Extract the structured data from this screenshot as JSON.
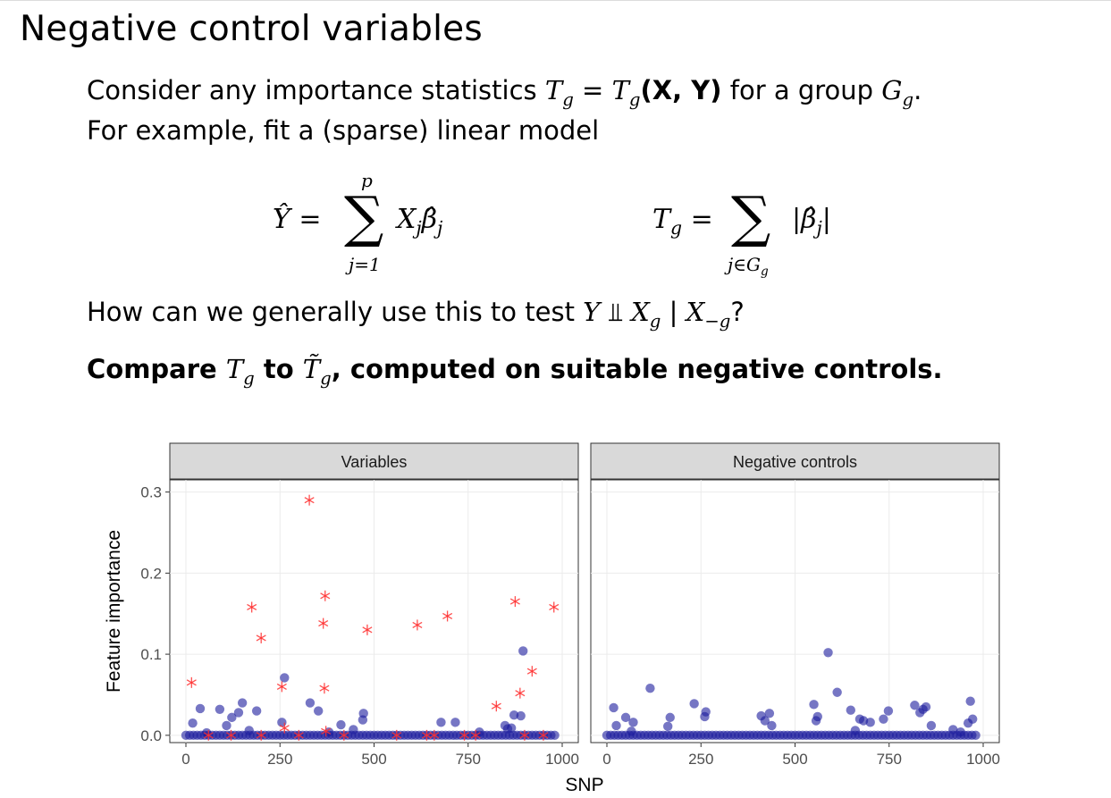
{
  "slide": {
    "title": "Negative control variables",
    "line1_a": "Consider any importance statistics ",
    "line1_stat": "T",
    "line1_stat_sub": "g",
    "line1_eq": " = ",
    "line1_cal": "T",
    "line1_cal_sub": "g",
    "line1_args": "(X, Y)",
    "line1_b": " for a group ",
    "line1_group": "G",
    "line1_group_sub": "g",
    "line1_end": ".",
    "line2": "For example, fit a (sparse) linear model",
    "eq1_lhs": "Ŷ = ",
    "eq1_sum_upper": "p",
    "eq1_sum_lower": "j=1",
    "eq1_term": "X",
    "eq1_term_sub": "j",
    "eq1_beta": "β̂",
    "eq1_beta_sub": "j",
    "eq2_lhs": "T",
    "eq2_lhs_sub": "g",
    "eq2_eq": " = ",
    "eq2_sum_lower": "j∈G",
    "eq2_sum_lower_sub": "g",
    "eq2_term": "|β̂",
    "eq2_term_sub": "j",
    "eq2_term_end": "|",
    "line3_a": "How can we generally use this to test ",
    "line3_y": "Y",
    "line3_indep": " ⫫ ",
    "line3_x": "X",
    "line3_x_sub": "g",
    "line3_bar": " | ",
    "line3_x2": "X",
    "line3_x2_sub": "−g",
    "line3_end": "?",
    "line4_a": "Compare ",
    "line4_t": "T",
    "line4_t_sub": "g",
    "line4_b": " to ",
    "line4_tt": "T̃",
    "line4_tt_sub": "g",
    "line4_c": ", computed on suitable negative controls."
  },
  "chart_data": {
    "type": "scatter",
    "xlabel": "SNP",
    "ylabel": "Feature importance",
    "xlim": [
      0,
      1000
    ],
    "ylim": [
      0,
      0.3
    ],
    "xticks": [
      0,
      250,
      500,
      750,
      1000
    ],
    "yticks": [
      0.0,
      0.1,
      0.2,
      0.3
    ],
    "ytick_labels": [
      "0.0",
      "0.1",
      "0.2",
      "0.3"
    ],
    "grid": true,
    "legend": "none",
    "colors": {
      "variable_point": "#1a1a9c",
      "signal_star": "#ff3030",
      "strip_bg": "#d9d9d9"
    },
    "panels": [
      {
        "strip": "Variables",
        "circles": [
          [
            0,
            0
          ],
          [
            10,
            0
          ],
          [
            20,
            0
          ],
          [
            30,
            0
          ],
          [
            40,
            0
          ],
          [
            50,
            0
          ],
          [
            60,
            0
          ],
          [
            70,
            0
          ],
          [
            80,
            0
          ],
          [
            90,
            0
          ],
          [
            100,
            0
          ],
          [
            110,
            0
          ],
          [
            120,
            0
          ],
          [
            130,
            0
          ],
          [
            140,
            0
          ],
          [
            150,
            0
          ],
          [
            160,
            0
          ],
          [
            170,
            0
          ],
          [
            180,
            0
          ],
          [
            190,
            0
          ],
          [
            200,
            0
          ],
          [
            210,
            0
          ],
          [
            220,
            0
          ],
          [
            230,
            0
          ],
          [
            240,
            0
          ],
          [
            250,
            0
          ],
          [
            260,
            0
          ],
          [
            270,
            0
          ],
          [
            280,
            0
          ],
          [
            290,
            0
          ],
          [
            300,
            0
          ],
          [
            310,
            0
          ],
          [
            320,
            0
          ],
          [
            330,
            0
          ],
          [
            340,
            0
          ],
          [
            350,
            0
          ],
          [
            360,
            0
          ],
          [
            370,
            0
          ],
          [
            380,
            0
          ],
          [
            390,
            0
          ],
          [
            400,
            0
          ],
          [
            410,
            0
          ],
          [
            420,
            0
          ],
          [
            430,
            0
          ],
          [
            440,
            0
          ],
          [
            450,
            0
          ],
          [
            460,
            0
          ],
          [
            470,
            0
          ],
          [
            480,
            0
          ],
          [
            490,
            0
          ],
          [
            500,
            0
          ],
          [
            510,
            0
          ],
          [
            520,
            0
          ],
          [
            530,
            0
          ],
          [
            540,
            0
          ],
          [
            550,
            0
          ],
          [
            560,
            0
          ],
          [
            570,
            0
          ],
          [
            580,
            0
          ],
          [
            590,
            0
          ],
          [
            600,
            0
          ],
          [
            610,
            0
          ],
          [
            620,
            0
          ],
          [
            630,
            0
          ],
          [
            640,
            0
          ],
          [
            650,
            0
          ],
          [
            660,
            0
          ],
          [
            670,
            0
          ],
          [
            680,
            0
          ],
          [
            690,
            0
          ],
          [
            700,
            0
          ],
          [
            710,
            0
          ],
          [
            720,
            0
          ],
          [
            730,
            0
          ],
          [
            740,
            0
          ],
          [
            750,
            0
          ],
          [
            760,
            0
          ],
          [
            770,
            0
          ],
          [
            780,
            0
          ],
          [
            790,
            0
          ],
          [
            800,
            0
          ],
          [
            810,
            0
          ],
          [
            820,
            0
          ],
          [
            830,
            0
          ],
          [
            840,
            0
          ],
          [
            850,
            0
          ],
          [
            860,
            0
          ],
          [
            870,
            0
          ],
          [
            880,
            0
          ],
          [
            890,
            0
          ],
          [
            900,
            0
          ],
          [
            910,
            0
          ],
          [
            920,
            0
          ],
          [
            930,
            0
          ],
          [
            940,
            0
          ],
          [
            950,
            0
          ],
          [
            960,
            0
          ],
          [
            970,
            0
          ],
          [
            980,
            0
          ],
          [
            18,
            0.015
          ],
          [
            38,
            0.033
          ],
          [
            55,
            0.003
          ],
          [
            90,
            0.032
          ],
          [
            108,
            0.012
          ],
          [
            122,
            0.022
          ],
          [
            140,
            0.028
          ],
          [
            150,
            0.04
          ],
          [
            168,
            0.006
          ],
          [
            188,
            0.03
          ],
          [
            255,
            0.016
          ],
          [
            262,
            0.071
          ],
          [
            330,
            0.04
          ],
          [
            352,
            0.03
          ],
          [
            380,
            0.004
          ],
          [
            412,
            0.013
          ],
          [
            445,
            0.007
          ],
          [
            470,
            0.019
          ],
          [
            472,
            0.027
          ],
          [
            678,
            0.016
          ],
          [
            716,
            0.016
          ],
          [
            780,
            0.004
          ],
          [
            848,
            0.012
          ],
          [
            855,
            0.008
          ],
          [
            865,
            0.009
          ],
          [
            872,
            0.025
          ],
          [
            890,
            0.024
          ],
          [
            896,
            0.104
          ]
        ],
        "stars": [
          [
            15,
            0.065
          ],
          [
            175,
            0.158
          ],
          [
            200,
            0.12
          ],
          [
            200,
            0.0
          ],
          [
            255,
            0.06
          ],
          [
            262,
            0.009
          ],
          [
            328,
            0.29
          ],
          [
            365,
            0.138
          ],
          [
            368,
            0.058
          ],
          [
            370,
            0.172
          ],
          [
            372,
            0.005
          ],
          [
            482,
            0.13
          ],
          [
            615,
            0.136
          ],
          [
            695,
            0.147
          ],
          [
            825,
            0.036
          ],
          [
            875,
            0.165
          ],
          [
            888,
            0.052
          ],
          [
            920,
            0.079
          ],
          [
            978,
            0.158
          ],
          [
            60,
            0.0
          ],
          [
            120,
            0.0
          ],
          [
            300,
            0.0
          ],
          [
            420,
            0.0
          ],
          [
            560,
            0.0
          ],
          [
            640,
            0.0
          ],
          [
            660,
            0.0
          ],
          [
            740,
            0.0
          ],
          [
            770,
            0.0
          ],
          [
            900,
            0.0
          ],
          [
            950,
            0.0
          ]
        ]
      },
      {
        "strip": "Negative controls",
        "circles": [
          [
            0,
            0
          ],
          [
            10,
            0
          ],
          [
            20,
            0
          ],
          [
            30,
            0
          ],
          [
            40,
            0
          ],
          [
            50,
            0
          ],
          [
            60,
            0
          ],
          [
            70,
            0
          ],
          [
            80,
            0
          ],
          [
            90,
            0
          ],
          [
            100,
            0
          ],
          [
            110,
            0
          ],
          [
            120,
            0
          ],
          [
            130,
            0
          ],
          [
            140,
            0
          ],
          [
            150,
            0
          ],
          [
            160,
            0
          ],
          [
            170,
            0
          ],
          [
            180,
            0
          ],
          [
            190,
            0
          ],
          [
            200,
            0
          ],
          [
            210,
            0
          ],
          [
            220,
            0
          ],
          [
            230,
            0
          ],
          [
            240,
            0
          ],
          [
            250,
            0
          ],
          [
            260,
            0
          ],
          [
            270,
            0
          ],
          [
            280,
            0
          ],
          [
            290,
            0
          ],
          [
            300,
            0
          ],
          [
            310,
            0
          ],
          [
            320,
            0
          ],
          [
            330,
            0
          ],
          [
            340,
            0
          ],
          [
            350,
            0
          ],
          [
            360,
            0
          ],
          [
            370,
            0
          ],
          [
            380,
            0
          ],
          [
            390,
            0
          ],
          [
            400,
            0
          ],
          [
            410,
            0
          ],
          [
            420,
            0
          ],
          [
            430,
            0
          ],
          [
            440,
            0
          ],
          [
            450,
            0
          ],
          [
            460,
            0
          ],
          [
            470,
            0
          ],
          [
            480,
            0
          ],
          [
            490,
            0
          ],
          [
            500,
            0
          ],
          [
            510,
            0
          ],
          [
            520,
            0
          ],
          [
            530,
            0
          ],
          [
            540,
            0
          ],
          [
            550,
            0
          ],
          [
            560,
            0
          ],
          [
            570,
            0
          ],
          [
            580,
            0
          ],
          [
            590,
            0
          ],
          [
            600,
            0
          ],
          [
            610,
            0
          ],
          [
            620,
            0
          ],
          [
            630,
            0
          ],
          [
            640,
            0
          ],
          [
            650,
            0
          ],
          [
            660,
            0
          ],
          [
            670,
            0
          ],
          [
            680,
            0
          ],
          [
            690,
            0
          ],
          [
            700,
            0
          ],
          [
            710,
            0
          ],
          [
            720,
            0
          ],
          [
            730,
            0
          ],
          [
            740,
            0
          ],
          [
            750,
            0
          ],
          [
            760,
            0
          ],
          [
            770,
            0
          ],
          [
            780,
            0
          ],
          [
            790,
            0
          ],
          [
            800,
            0
          ],
          [
            810,
            0
          ],
          [
            820,
            0
          ],
          [
            830,
            0
          ],
          [
            840,
            0
          ],
          [
            850,
            0
          ],
          [
            860,
            0
          ],
          [
            870,
            0
          ],
          [
            880,
            0
          ],
          [
            890,
            0
          ],
          [
            900,
            0
          ],
          [
            910,
            0
          ],
          [
            920,
            0
          ],
          [
            930,
            0
          ],
          [
            940,
            0
          ],
          [
            950,
            0
          ],
          [
            960,
            0
          ],
          [
            970,
            0
          ],
          [
            980,
            0
          ],
          [
            18,
            0.034
          ],
          [
            25,
            0.012
          ],
          [
            50,
            0.022
          ],
          [
            65,
            0.005
          ],
          [
            70,
            0.016
          ],
          [
            115,
            0.058
          ],
          [
            162,
            0.011
          ],
          [
            168,
            0.022
          ],
          [
            232,
            0.039
          ],
          [
            260,
            0.023
          ],
          [
            263,
            0.029
          ],
          [
            410,
            0.024
          ],
          [
            420,
            0.018
          ],
          [
            432,
            0.027
          ],
          [
            438,
            0.012
          ],
          [
            550,
            0.038
          ],
          [
            556,
            0.018
          ],
          [
            560,
            0.023
          ],
          [
            588,
            0.102
          ],
          [
            612,
            0.053
          ],
          [
            648,
            0.031
          ],
          [
            660,
            0.006
          ],
          [
            672,
            0.02
          ],
          [
            682,
            0.018
          ],
          [
            700,
            0.016
          ],
          [
            735,
            0.02
          ],
          [
            748,
            0.03
          ],
          [
            818,
            0.037
          ],
          [
            832,
            0.028
          ],
          [
            840,
            0.032
          ],
          [
            848,
            0.035
          ],
          [
            862,
            0.012
          ],
          [
            920,
            0.007
          ],
          [
            940,
            0.004
          ],
          [
            960,
            0.015
          ],
          [
            966,
            0.042
          ],
          [
            972,
            0.02
          ]
        ]
      }
    ]
  }
}
